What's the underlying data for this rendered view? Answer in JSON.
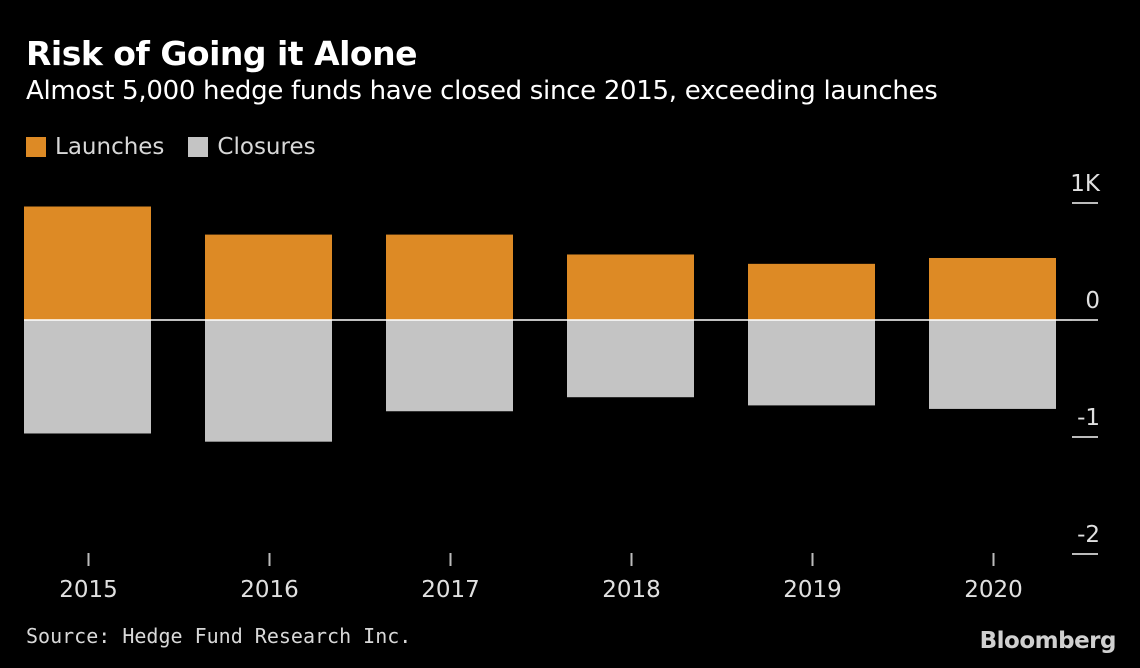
{
  "header": {
    "title": "Risk of Going it Alone",
    "subtitle": "Almost 5,000 hedge funds have closed since 2015, exceeding launches"
  },
  "legend": {
    "items": [
      {
        "label": "Launches",
        "color": "#dd8a25"
      },
      {
        "label": "Closures",
        "color": "#c4c4c4"
      }
    ]
  },
  "footer": {
    "source": "Source: Hedge Fund Research Inc.",
    "brand": "Bloomberg"
  },
  "chart_data": {
    "type": "bar",
    "categories": [
      "2015",
      "2016",
      "2017",
      "2018",
      "2019",
      "2020"
    ],
    "series": [
      {
        "name": "Launches",
        "values": [
          0.97,
          0.73,
          0.73,
          0.56,
          0.48,
          0.53
        ],
        "color": "#dd8a25"
      },
      {
        "name": "Closures",
        "values": [
          -0.97,
          -1.04,
          -0.78,
          -0.66,
          -0.73,
          -0.76
        ],
        "color": "#c4c4c4"
      }
    ],
    "title": "Risk of Going it Alone",
    "subtitle": "Almost 5,000 hedge funds have closed since 2015, exceeding launches",
    "yticks": [
      {
        "value": 1,
        "label": "1K"
      },
      {
        "value": 0,
        "label": "0"
      },
      {
        "value": -1,
        "label": "-1"
      },
      {
        "value": -2,
        "label": "-2"
      }
    ],
    "ylim": [
      -2,
      1
    ],
    "stacked": true,
    "axis_position": "right",
    "legend_position": "top-left",
    "grid": false
  }
}
